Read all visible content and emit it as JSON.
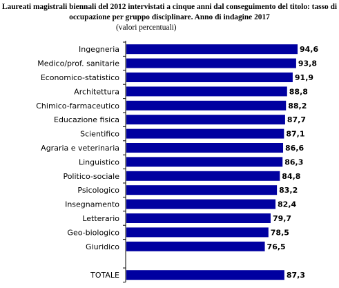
{
  "chart_data": {
    "type": "bar",
    "orientation": "horizontal",
    "title": "Laureati magistrali biennali del 2012 intervistati a cinque anni dal conseguimento del titolo: tasso di occupazione per gruppo disciplinare. Anno di indagine 2017",
    "subtitle": "(valori percentuali)",
    "categories": [
      "Ingegneria",
      "Medico/prof. sanitarie",
      "Economico-statistico",
      "Architettura",
      "Chimico-farmaceutico",
      "Educazione fisica",
      "Scientifico",
      "Agraria e veterinaria",
      "Linguistico",
      "Politico-sociale",
      "Psicologico",
      "Insegnamento",
      "Letterario",
      "Geo-biologico",
      "Giuridico"
    ],
    "values": [
      94.6,
      93.8,
      91.9,
      88.8,
      88.2,
      87.7,
      87.1,
      86.6,
      86.3,
      84.8,
      83.2,
      82.4,
      79.7,
      78.5,
      76.5
    ],
    "value_labels": [
      "94,6",
      "93,8",
      "91,9",
      "88,8",
      "88,2",
      "87,7",
      "87,1",
      "86,6",
      "86,3",
      "84,8",
      "83,2",
      "82,4",
      "79,7",
      "78,5",
      "76,5"
    ],
    "total": {
      "label": "TOTALE",
      "value": 87.3,
      "value_label": "87,3"
    },
    "bar_color": "#0000a0",
    "grid": false,
    "legend": "none"
  }
}
